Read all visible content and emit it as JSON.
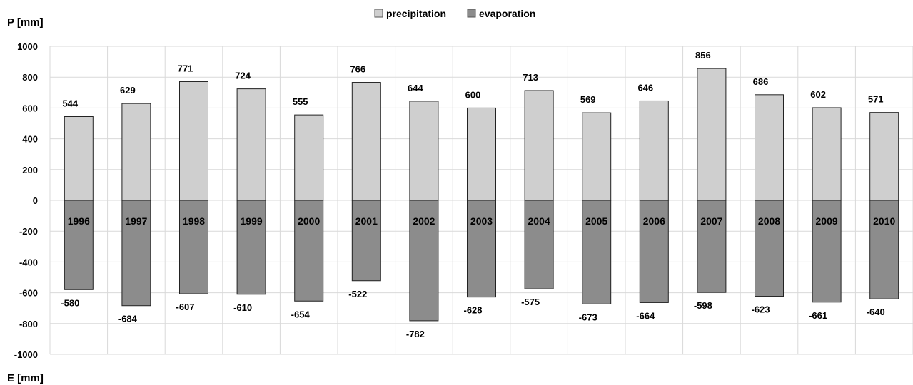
{
  "chart_data": {
    "type": "bar",
    "ylabel_top": "P [mm]",
    "ylabel_bottom": "E [mm]",
    "ylim": [
      -1000,
      1000
    ],
    "yticks": [
      1000,
      800,
      600,
      400,
      200,
      0,
      -200,
      -400,
      -600,
      -800,
      -1000
    ],
    "categories": [
      "1996",
      "1997",
      "1998",
      "1999",
      "2000",
      "2001",
      "2002",
      "2003",
      "2004",
      "2005",
      "2006",
      "2007",
      "2008",
      "2009",
      "2010"
    ],
    "series": [
      {
        "name": "precipitation",
        "color": "#cfcfcf",
        "values": [
          544,
          629,
          771,
          724,
          555,
          766,
          644,
          600,
          713,
          569,
          646,
          856,
          686,
          602,
          571
        ]
      },
      {
        "name": "evaporation",
        "color": "#8c8c8c",
        "values": [
          -580,
          -684,
          -607,
          -610,
          -654,
          -522,
          -782,
          -628,
          -575,
          -673,
          -664,
          -598,
          -623,
          -661,
          -640
        ]
      }
    ],
    "legend_position": "top-center",
    "grid": true
  }
}
